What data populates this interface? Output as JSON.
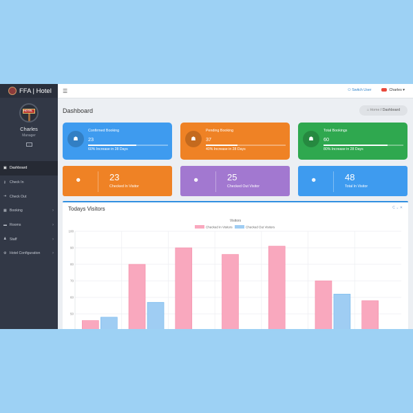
{
  "app": {
    "title": "FFA | Hotel"
  },
  "profile": {
    "name": "Charles",
    "role": "Manager",
    "avatar_text": "HOTEL"
  },
  "sidebar": {
    "items": [
      {
        "label": "Dashboard",
        "icon": "dashboard-icon",
        "glyph": "▣",
        "has_arrow": false,
        "active": true
      },
      {
        "label": "Check In",
        "icon": "key-icon",
        "glyph": "⚷",
        "has_arrow": false,
        "active": false
      },
      {
        "label": "Check Out",
        "icon": "sign-out-icon",
        "glyph": "⇥",
        "has_arrow": false,
        "active": false
      },
      {
        "label": "Booking",
        "icon": "calendar-icon",
        "glyph": "▦",
        "has_arrow": true,
        "active": false
      },
      {
        "label": "Rooms",
        "icon": "bed-icon",
        "glyph": "▬",
        "has_arrow": true,
        "active": false
      },
      {
        "label": "Staff",
        "icon": "users-icon",
        "glyph": "♟",
        "has_arrow": true,
        "active": false
      },
      {
        "label": "Hotel Configuration",
        "icon": "gear-icon",
        "glyph": "⚙",
        "has_arrow": true,
        "active": false
      }
    ],
    "arrow_glyph": "›"
  },
  "topbar": {
    "menu_glyph": "☰",
    "switch_label": "Switch User",
    "switch_glyph": "⚇",
    "user_label": "Charles",
    "user_caret": "▾"
  },
  "page": {
    "title": "Dashboard",
    "breadcrumb_home": "Home",
    "breadcrumb_sep": "/",
    "breadcrumb_current": "Dashboard",
    "home_glyph": "⌂"
  },
  "summary_cards": [
    {
      "title": "Confirmed Booking",
      "value": "23",
      "progress": 0.6,
      "note": "60% Increase in 28 Days",
      "color": "#3e9bef",
      "glyph": "☗"
    },
    {
      "title": "Pending Booking",
      "value": "37",
      "progress": 0.4,
      "note": "40% Increase in 28 Days",
      "color": "#ef8225",
      "glyph": "☗"
    },
    {
      "title": "Total Bookings",
      "value": "60",
      "progress": 0.8,
      "note": "80% Increase in 28 Days",
      "color": "#2fa84f",
      "glyph": "☗"
    }
  ],
  "stat_cards": [
    {
      "value": "23",
      "label": "Checked In Visitor",
      "color": "#ef8225",
      "glyph": "☻"
    },
    {
      "value": "25",
      "label": "Checked Out Visitor",
      "color": "#a278d0",
      "glyph": "☻"
    },
    {
      "value": "48",
      "label": "Total In Visitor",
      "color": "#3e9bef",
      "glyph": "☻"
    }
  ],
  "visitors_panel": {
    "title": "Todays Visitors",
    "tools": "C ⌄ ✕"
  },
  "chart_data": {
    "type": "bar",
    "title": "Visitors",
    "xlabel": "",
    "ylabel": "",
    "yticks": [
      "100",
      "90",
      "80",
      "70",
      "60",
      "50"
    ],
    "ylim": [
      44,
      100
    ],
    "grid": true,
    "legend": "top",
    "series": [
      {
        "name": "Checked In Visitors",
        "color": "#f9a8be",
        "values": [
          46,
          80,
          90,
          86,
          91,
          70,
          58
        ]
      },
      {
        "name": "Checked Out Visitors",
        "color": "#9fcdf3",
        "values": [
          48,
          57,
          null,
          null,
          null,
          62,
          null
        ]
      }
    ]
  }
}
